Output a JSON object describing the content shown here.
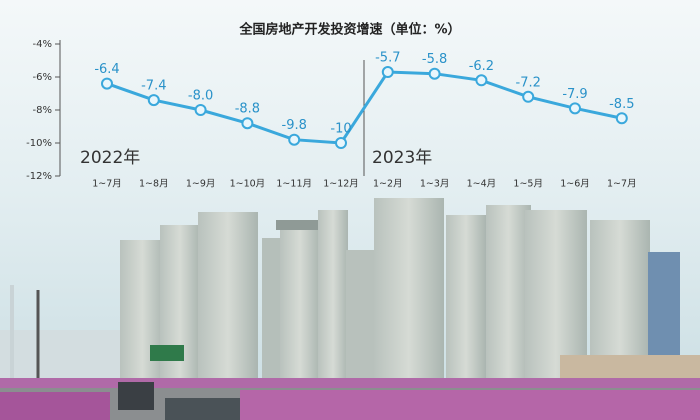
{
  "chart_data": {
    "type": "line",
    "title": "全国房地产开发投资增速（单位：%）",
    "categories": [
      "1~7月",
      "1~8月",
      "1~9月",
      "1~10月",
      "1~11月",
      "1~12月",
      "1~2月",
      "1~3月",
      "1~4月",
      "1~5月",
      "1~6月",
      "1~7月"
    ],
    "values": [
      -6.4,
      -7.4,
      -8.0,
      -8.8,
      -9.8,
      -10,
      -5.7,
      -5.8,
      -6.2,
      -7.2,
      -7.9,
      -8.5
    ],
    "value_labels": [
      "-6.4",
      "-7.4",
      "-8.0",
      "-8.8",
      "-9.8",
      "-10",
      "-5.7",
      "-5.8",
      "-6.2",
      "-7.2",
      "-7.9",
      "-8.5"
    ],
    "color": "#3aa8dc",
    "ylim": [
      -12,
      -4
    ],
    "yticks": [
      {
        "value": -4,
        "label": "-4%"
      },
      {
        "value": -6,
        "label": "-6%"
      },
      {
        "value": -8,
        "label": "-8%"
      },
      {
        "value": -10,
        "label": "-10%"
      },
      {
        "value": -12,
        "label": "-12%"
      }
    ],
    "annotations": [
      "2022年",
      "2023年"
    ]
  }
}
